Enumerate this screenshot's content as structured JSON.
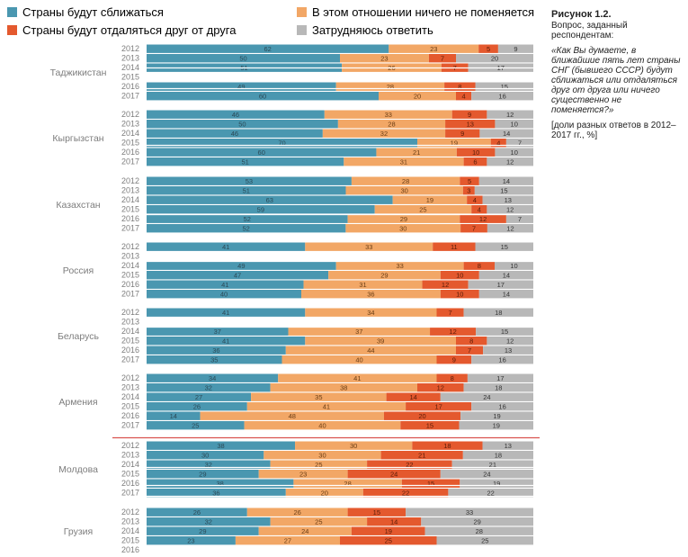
{
  "legend": [
    {
      "label": "Страны будут сближаться",
      "color": "#4a97b0"
    },
    {
      "label": "В этом отношении ничего не поменяется",
      "color": "#f2a766"
    },
    {
      "label": "Страны будут отдаляться друг от друга",
      "color": "#e4592e"
    },
    {
      "label": "Затрудняюсь ответить",
      "color": "#b8b8b8"
    }
  ],
  "figure": {
    "title": "Рисунок 1.2.",
    "intro": "Вопрос, заданный респондентам:",
    "question": "«Как Вы думаете, в ближайшие пять лет страны СНГ (бывшего СССР) будут сближаться или отдаляться друг от друга или ничего существенно не поменяется?»",
    "units": "[доли разных ответов в 2012–2017 гг., %]"
  },
  "chart_data": {
    "type": "bar",
    "orientation": "horizontal",
    "stacked": true,
    "series_names": [
      "Страны будут сближаться",
      "В этом отношении ничего не поменяется",
      "Страны будут отдаляться друг от друга",
      "Затрудняюсь ответить"
    ],
    "groups": [
      {
        "country": "Таджикистан",
        "rows": [
          {
            "year": "2012",
            "values": [
              62,
              23,
              5,
              9
            ]
          },
          {
            "year": "2013",
            "values": [
              50,
              23,
              7,
              20
            ]
          },
          {
            "year": "2014",
            "values": [
              51,
              26,
              7,
              17
            ]
          },
          {
            "year": "2015",
            "values": null
          },
          {
            "year": "2016",
            "values": [
              49,
              28,
              8,
              15
            ]
          },
          {
            "year": "2017",
            "values": [
              60,
              20,
              4,
              16
            ]
          }
        ]
      },
      {
        "country": "Кыргызстан",
        "rows": [
          {
            "year": "2012",
            "values": [
              46,
              33,
              9,
              12
            ]
          },
          {
            "year": "2013",
            "values": [
              50,
              28,
              13,
              10
            ]
          },
          {
            "year": "2014",
            "values": [
              46,
              32,
              9,
              14
            ]
          },
          {
            "year": "2015",
            "values": [
              70,
              19,
              4,
              7
            ]
          },
          {
            "year": "2016",
            "values": [
              60,
              21,
              10,
              10
            ]
          },
          {
            "year": "2017",
            "values": [
              51,
              31,
              6,
              12
            ]
          }
        ]
      },
      {
        "country": "Казахстан",
        "rows": [
          {
            "year": "2012",
            "values": [
              53,
              28,
              5,
              14
            ]
          },
          {
            "year": "2013",
            "values": [
              51,
              30,
              3,
              15
            ]
          },
          {
            "year": "2014",
            "values": [
              63,
              19,
              4,
              13
            ]
          },
          {
            "year": "2015",
            "values": [
              59,
              25,
              4,
              12
            ]
          },
          {
            "year": "2016",
            "values": [
              52,
              29,
              12,
              7
            ]
          },
          {
            "year": "2017",
            "values": [
              52,
              30,
              7,
              12
            ]
          }
        ]
      },
      {
        "country": "Россия",
        "rows": [
          {
            "year": "2012",
            "values": [
              41,
              33,
              11,
              15
            ]
          },
          {
            "year": "2013",
            "values": null
          },
          {
            "year": "2014",
            "values": [
              49,
              33,
              8,
              10
            ]
          },
          {
            "year": "2015",
            "values": [
              47,
              29,
              10,
              14
            ]
          },
          {
            "year": "2016",
            "values": [
              41,
              31,
              12,
              17
            ]
          },
          {
            "year": "2017",
            "values": [
              40,
              36,
              10,
              14
            ]
          }
        ]
      },
      {
        "country": "Беларусь",
        "rows": [
          {
            "year": "2012",
            "values": [
              41,
              34,
              7,
              18
            ]
          },
          {
            "year": "2013",
            "values": null
          },
          {
            "year": "2014",
            "values": [
              37,
              37,
              12,
              15
            ]
          },
          {
            "year": "2015",
            "values": [
              41,
              39,
              8,
              12
            ]
          },
          {
            "year": "2016",
            "values": [
              36,
              44,
              7,
              13
            ]
          },
          {
            "year": "2017",
            "values": [
              35,
              40,
              9,
              16
            ]
          }
        ]
      },
      {
        "country": "Армения",
        "rows": [
          {
            "year": "2012",
            "values": [
              34,
              41,
              8,
              17
            ]
          },
          {
            "year": "2013",
            "values": [
              32,
              38,
              12,
              18
            ]
          },
          {
            "year": "2014",
            "values": [
              27,
              35,
              14,
              24
            ]
          },
          {
            "year": "2015",
            "values": [
              26,
              41,
              17,
              16
            ]
          },
          {
            "year": "2016",
            "values": [
              14,
              48,
              20,
              19
            ]
          },
          {
            "year": "2017",
            "values": [
              25,
              40,
              15,
              19
            ]
          }
        ]
      },
      {
        "country": "Молдова",
        "rows": [
          {
            "year": "2012",
            "values": [
              38,
              30,
              18,
              13
            ]
          },
          {
            "year": "2013",
            "values": [
              30,
              30,
              21,
              18
            ]
          },
          {
            "year": "2014",
            "values": [
              32,
              25,
              22,
              21
            ]
          },
          {
            "year": "2015",
            "values": [
              29,
              23,
              24,
              24
            ]
          },
          {
            "year": "2016",
            "values": [
              38,
              28,
              15,
              19
            ]
          },
          {
            "year": "2017",
            "values": [
              36,
              20,
              22,
              22
            ]
          }
        ]
      },
      {
        "country": "Грузия",
        "rows": [
          {
            "year": "2012",
            "values": [
              26,
              26,
              15,
              33
            ]
          },
          {
            "year": "2013",
            "values": [
              32,
              25,
              14,
              29
            ]
          },
          {
            "year": "2014",
            "values": [
              29,
              24,
              19,
              28
            ]
          },
          {
            "year": "2015",
            "values": [
              23,
              27,
              25,
              25
            ]
          },
          {
            "year": "2016",
            "values": null
          }
        ]
      }
    ]
  }
}
